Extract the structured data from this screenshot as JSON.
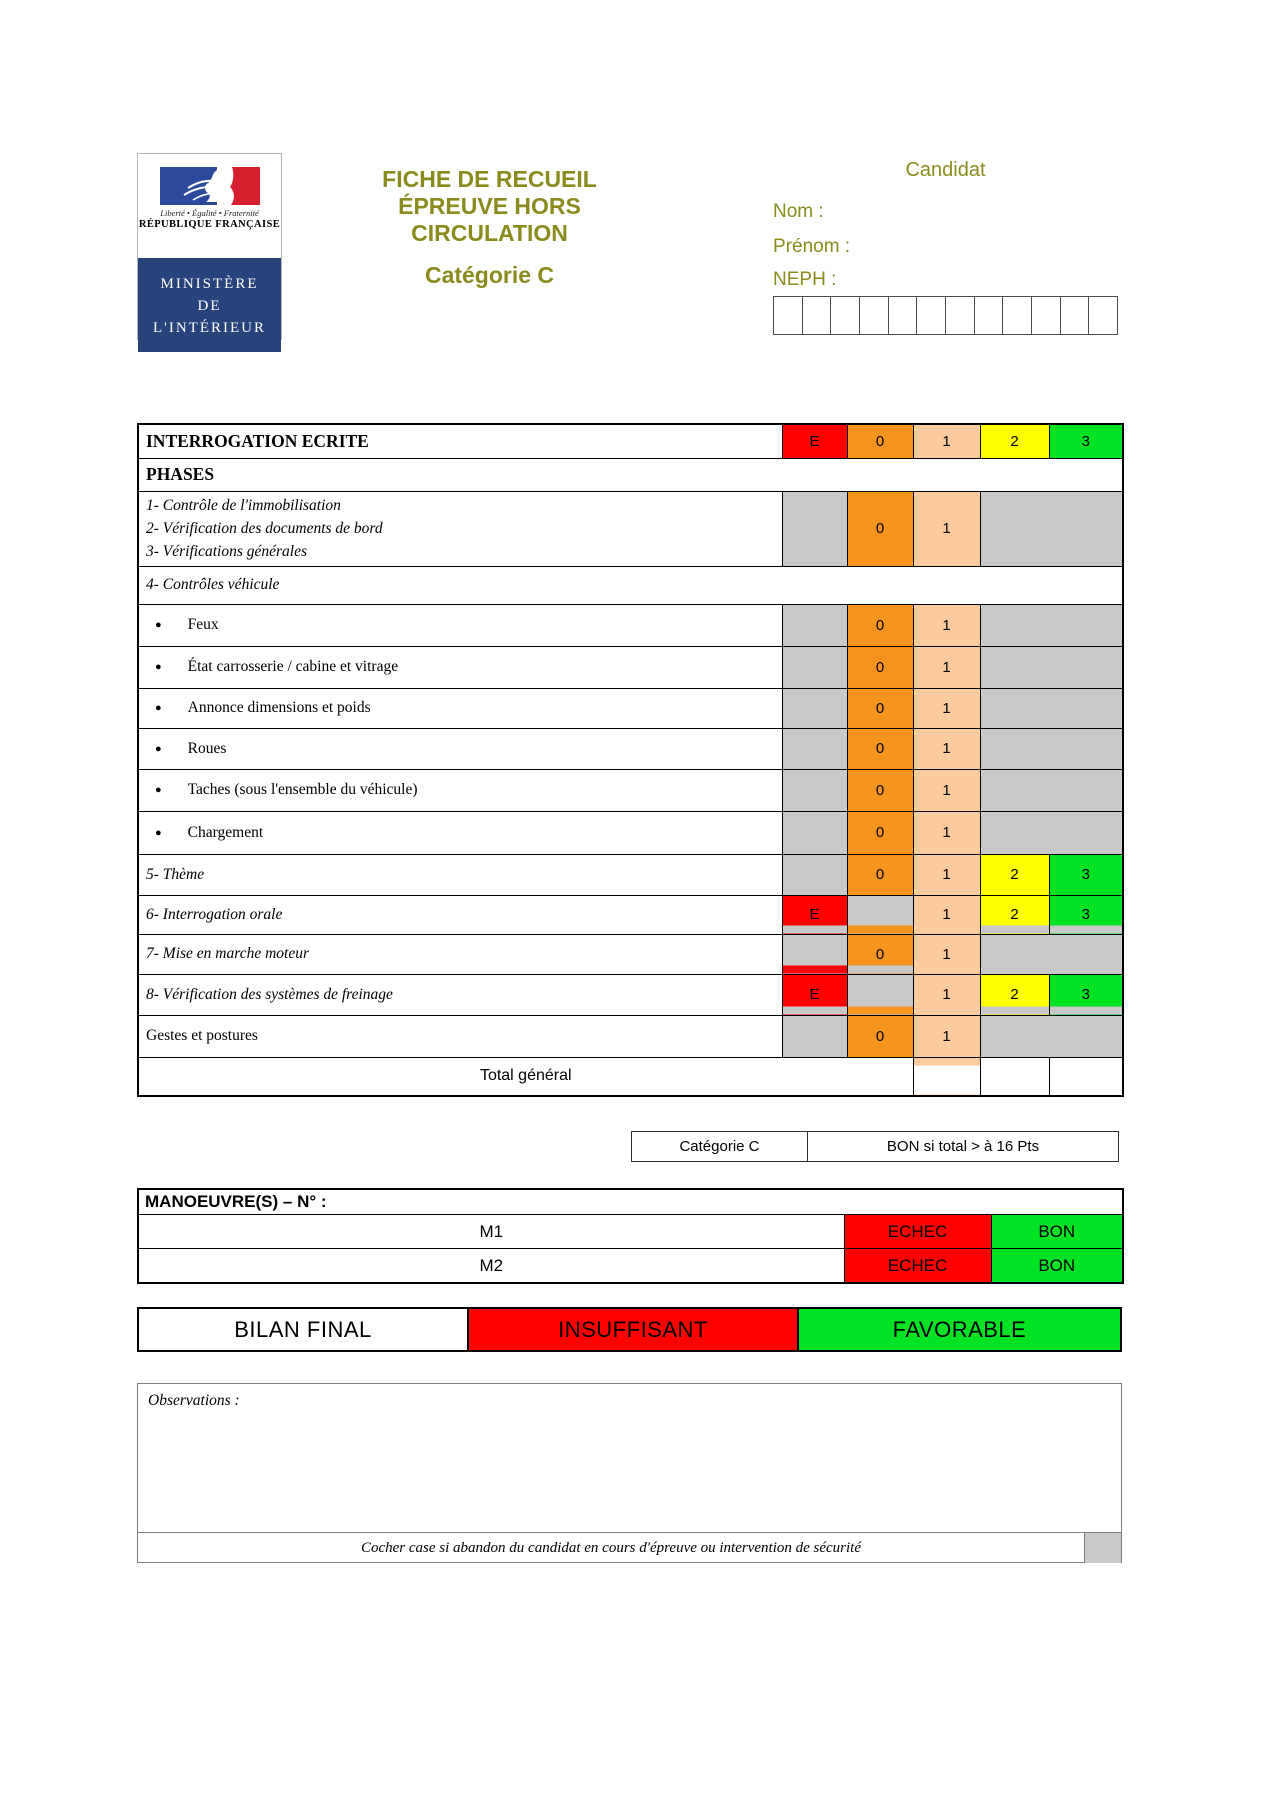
{
  "header": {
    "title_lines": [
      "FICHE DE RECUEIL",
      "ÉPREUVE HORS",
      "CIRCULATION"
    ],
    "category": "Catégorie C"
  },
  "logo": {
    "motto": "Liberté • Égalité • Fraternité",
    "republic": "RÉPUBLIQUE FRANÇAISE",
    "ministry_lines": [
      "MINISTÈRE",
      "DE",
      "L'INTÉRIEUR"
    ]
  },
  "candidate": {
    "heading": "Candidat",
    "name_label": "Nom :",
    "firstname_label": "Prénom :",
    "neph_label": "NEPH :",
    "neph_cells": 12,
    "neph_value": ""
  },
  "scoring": {
    "score_scale": [
      "E",
      "0",
      "1",
      "2",
      "3"
    ],
    "rows": [
      {
        "label": "INTERROGATION ECRITE",
        "style": "header",
        "cells": [
          {
            "c": "red",
            "t": "E"
          },
          {
            "c": "orange",
            "t": "0"
          },
          {
            "c": "peach",
            "t": "1"
          },
          {
            "c": "yellow",
            "t": "2"
          },
          {
            "c": "green",
            "t": "3"
          }
        ]
      },
      {
        "label": "PHASES",
        "style": "header",
        "full": true,
        "cells": []
      },
      {
        "label_lines": [
          "1- Contrôle de l'immobilisation",
          "2- Vérification des documents de bord",
          "3- Vérifications générales"
        ],
        "style": "items",
        "cells": [
          {
            "c": "gray"
          },
          {
            "c": "orange",
            "t": "0"
          },
          {
            "c": "peach",
            "t": "1"
          },
          {
            "c": "gray",
            "span": 2
          }
        ]
      },
      {
        "label": "4- Contrôles véhicule",
        "style": "italic",
        "full": true,
        "cells": []
      },
      {
        "label": "Feux",
        "style": "bullet",
        "cells": [
          {
            "c": "gray"
          },
          {
            "c": "orange",
            "t": "0"
          },
          {
            "c": "peach",
            "t": "1"
          },
          {
            "c": "gray",
            "span": 2
          }
        ]
      },
      {
        "label": "État carrosserie / cabine et vitrage",
        "style": "bullet",
        "cells": [
          {
            "c": "gray"
          },
          {
            "c": "orange",
            "t": "0"
          },
          {
            "c": "peach",
            "t": "1"
          },
          {
            "c": "gray",
            "span": 2
          }
        ]
      },
      {
        "label": "Annonce dimensions et poids",
        "style": "bullet",
        "cells": [
          {
            "c": "gray"
          },
          {
            "c": "orange",
            "t": "0"
          },
          {
            "c": "peach",
            "t": "1"
          },
          {
            "c": "gray",
            "span": 2
          }
        ]
      },
      {
        "label": "Roues",
        "style": "bullet",
        "cells": [
          {
            "c": "gray"
          },
          {
            "c": "orange",
            "t": "0"
          },
          {
            "c": "peach",
            "t": "1"
          },
          {
            "c": "gray",
            "span": 2
          }
        ]
      },
      {
        "label": "Taches (sous l'ensemble du véhicule)",
        "style": "bullet",
        "cells": [
          {
            "c": "gray"
          },
          {
            "c": "orange",
            "t": "0"
          },
          {
            "c": "peach",
            "t": "1"
          },
          {
            "c": "gray",
            "span": 2
          }
        ]
      },
      {
        "label": "Chargement",
        "style": "bullet",
        "cells": [
          {
            "c": "gray"
          },
          {
            "c": "orange",
            "t": "0"
          },
          {
            "c": "peach",
            "t": "1"
          },
          {
            "c": "gray",
            "span": 2
          }
        ]
      },
      {
        "label": "5- Thème",
        "style": "italic",
        "cells": [
          {
            "c": "gray"
          },
          {
            "c": "orange",
            "t": "0"
          },
          {
            "c": "peach",
            "t": "1"
          },
          {
            "c": "yellow",
            "t": "2"
          },
          {
            "c": "green",
            "t": "3"
          }
        ]
      },
      {
        "label": "6- Interrogation orale",
        "style": "italic",
        "cells": [
          {
            "c": "red",
            "t": "E",
            "bottom": "gray"
          },
          {
            "c": "gray",
            "bottom": "orange"
          },
          {
            "c": "peach",
            "t": "1"
          },
          {
            "c": "yellow",
            "t": "2",
            "bottom": "gray"
          },
          {
            "c": "green",
            "t": "3",
            "bottom": "gray"
          }
        ]
      },
      {
        "label": "7- Mise en marche moteur",
        "style": "italic",
        "cells": [
          {
            "c": "gray",
            "bottom": "red"
          },
          {
            "c": "orange",
            "t": "0",
            "bottom": "gray"
          },
          {
            "c": "peach",
            "t": "1"
          },
          {
            "c": "gray",
            "span": 2
          }
        ]
      },
      {
        "label": "8- Vérification des systèmes de freinage",
        "style": "italic",
        "cells": [
          {
            "c": "red",
            "t": "E",
            "bottom": "gray"
          },
          {
            "c": "gray",
            "bottom": "orange"
          },
          {
            "c": "peach",
            "t": "1"
          },
          {
            "c": "yellow",
            "t": "2",
            "bottom": "gray"
          },
          {
            "c": "green",
            "t": "3",
            "bottom": "gray"
          }
        ]
      },
      {
        "label": "Gestes et postures",
        "style": "plain",
        "cells": [
          {
            "c": "gray"
          },
          {
            "c": "orange",
            "t": "0"
          },
          {
            "c": "peach",
            "t": "1"
          },
          {
            "c": "gray",
            "span": 2
          }
        ]
      },
      {
        "label": "Total général",
        "style": "total",
        "cells": [
          {
            "c": "white",
            "top": "peach"
          },
          {
            "c": "white"
          },
          {
            "c": "white"
          }
        ]
      }
    ]
  },
  "category_box": {
    "left": "Catégorie C",
    "right": "BON si total > à 16 Pts"
  },
  "maneuvers": {
    "heading": "MANOEUVRE(S) – N° :",
    "rows": [
      {
        "label": "M1",
        "fail": "ECHEC",
        "pass": "BON"
      },
      {
        "label": "M2",
        "fail": "ECHEC",
        "pass": "BON"
      }
    ]
  },
  "final": {
    "label": "BILAN FINAL",
    "fail": "INSUFFISANT",
    "pass": "FAVORABLE"
  },
  "observations": {
    "label": "Observations :",
    "value": "",
    "footer": "Cocher case si abandon du candidat en cours d'épreuve ou intervention de sécurité"
  },
  "colors": {
    "palette": {
      "red": "#FF0000",
      "orange": "#F7941E",
      "peach": "#FBCB9E",
      "yellow": "#FFFF00",
      "green": "#00E325",
      "gray": "#C9C9C9",
      "white": "#FFFFFF"
    },
    "accent_olive": "#8A8B1E",
    "logo_blue": "#26437C",
    "flag_blue": "#2B4A9B",
    "flag_red": "#D6202F",
    "fail_red": "#FF0000",
    "pass_green": "#00E325"
  }
}
